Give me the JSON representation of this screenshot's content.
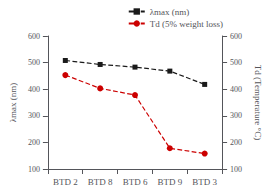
{
  "chart_data": {
    "type": "line",
    "categories": [
      "BTD 2",
      "BTD 8",
      "BTD 6",
      "BTD 9",
      "BTD 3"
    ],
    "series": [
      {
        "name": "λmax (nm)",
        "color": "#1a1a1a",
        "values": [
          508,
          493,
          483,
          468,
          418
        ],
        "marker": "square",
        "line_style": "dashed"
      },
      {
        "name": "Td (5% weight loss)",
        "color": "#cc0000",
        "values": [
          453,
          403,
          378,
          178,
          158
        ],
        "axis": "y2",
        "marker": "circle",
        "line_style": "dashed"
      }
    ],
    "ylabel": "λmax (nm)",
    "y2label": "Td (Temperature °C)",
    "ylim": [
      100,
      600
    ],
    "yticks": [
      100,
      200,
      300,
      400,
      500,
      600
    ],
    "y2lim": [
      100,
      600
    ],
    "y2ticks": [
      100,
      200,
      300,
      400,
      500,
      600
    ],
    "grid": false,
    "legend": "upper right"
  }
}
